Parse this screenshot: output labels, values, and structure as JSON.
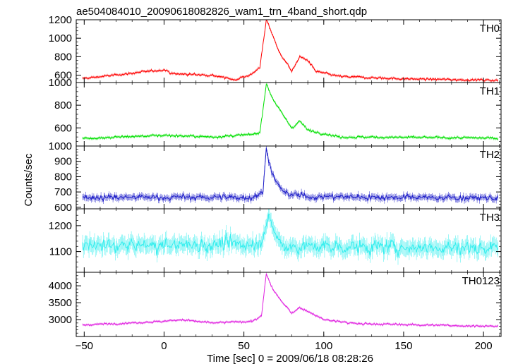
{
  "title": "ae504084010_20090618082826_wam1_trn_4band_short.qdp",
  "xlabel": "Time [sec] 0 = 2009/06/18 08:28:26",
  "ylabel": "Counts/sec",
  "chart_data": {
    "type": "line",
    "x_range": [
      -55,
      211
    ],
    "x_ticks": [
      -50,
      0,
      50,
      100,
      150,
      200
    ],
    "x_tick_labels": [
      "−50",
      "0",
      "50",
      "100",
      "150",
      "200"
    ],
    "grid": false,
    "panels": [
      {
        "name": "TH0",
        "color": "#ff0000",
        "ylim": [
          520,
          1200
        ],
        "y_ticks": [
          600,
          800,
          1000,
          1200
        ],
        "y_tick_labels": [
          "600",
          "800",
          "1000",
          "1200"
        ],
        "baseline": 555,
        "noise": 14,
        "features": [
          {
            "x": 0.4,
            "value": 660
          },
          {
            "x": 5,
            "value": 615
          },
          {
            "x": 30,
            "value": 600
          },
          {
            "x": 44,
            "value": 550
          },
          {
            "x": 55,
            "value": 610
          },
          {
            "x": 60,
            "value": 690
          },
          {
            "x": 63,
            "value": 1060
          },
          {
            "x": 64,
            "value": 1200
          },
          {
            "x": 67,
            "value": 1080
          },
          {
            "x": 72,
            "value": 850
          },
          {
            "x": 78,
            "value": 700
          },
          {
            "x": 80,
            "value": 640
          },
          {
            "x": 85,
            "value": 800
          },
          {
            "x": 90,
            "value": 760
          },
          {
            "x": 95,
            "value": 640
          },
          {
            "x": 110,
            "value": 585
          },
          {
            "x": 150,
            "value": 560
          },
          {
            "x": 209,
            "value": 545
          }
        ]
      },
      {
        "name": "TH1",
        "color": "#00e000",
        "ylim": [
          440,
          1000
        ],
        "y_ticks": [
          600,
          800,
          1000
        ],
        "y_tick_labels": [
          "600",
          "800",
          "1000"
        ],
        "baseline": 505,
        "noise": 12,
        "features": [
          {
            "x": 0.4,
            "value": 535
          },
          {
            "x": 10,
            "value": 530
          },
          {
            "x": 30,
            "value": 520
          },
          {
            "x": 55,
            "value": 540
          },
          {
            "x": 60,
            "value": 560
          },
          {
            "x": 63,
            "value": 880
          },
          {
            "x": 64,
            "value": 990
          },
          {
            "x": 68,
            "value": 860
          },
          {
            "x": 75,
            "value": 700
          },
          {
            "x": 80,
            "value": 600
          },
          {
            "x": 85,
            "value": 660
          },
          {
            "x": 90,
            "value": 580
          },
          {
            "x": 110,
            "value": 520
          },
          {
            "x": 209,
            "value": 510
          }
        ]
      },
      {
        "name": "TH2",
        "color": "#1c1cc8",
        "ylim": [
          590,
          1000
        ],
        "y_ticks": [
          600,
          700,
          800,
          900,
          1000
        ],
        "y_tick_labels": [
          "600",
          "700",
          "800",
          "900",
          "1000"
        ],
        "baseline": 665,
        "noise": 22,
        "features": [
          {
            "x": 55,
            "value": 665
          },
          {
            "x": 62,
            "value": 700
          },
          {
            "x": 64,
            "value": 1000
          },
          {
            "x": 66,
            "value": 880
          },
          {
            "x": 70,
            "value": 760
          },
          {
            "x": 76,
            "value": 690
          },
          {
            "x": 90,
            "value": 670
          },
          {
            "x": 209,
            "value": 660
          }
        ]
      },
      {
        "name": "TH3",
        "color": "#33eeee",
        "ylim": [
          1020,
          1265
        ],
        "y_ticks": [
          1100,
          1200
        ],
        "y_tick_labels": [
          "1100",
          "1200"
        ],
        "baseline": 1120,
        "noise": 32,
        "features": [
          {
            "x": 60,
            "value": 1130
          },
          {
            "x": 65,
            "value": 1230
          },
          {
            "x": 70,
            "value": 1160
          },
          {
            "x": 75,
            "value": 1120
          },
          {
            "x": 209,
            "value": 1115
          }
        ]
      },
      {
        "name": "TH0123",
        "color": "#e020e0",
        "ylim": [
          2500,
          4400
        ],
        "y_ticks": [
          3000,
          3500,
          4000
        ],
        "y_tick_labels": [
          "3000",
          "3500",
          "4000"
        ],
        "baseline": 2830,
        "noise": 35,
        "features": [
          {
            "x": 0,
            "value": 2950
          },
          {
            "x": 10,
            "value": 3000
          },
          {
            "x": 30,
            "value": 2900
          },
          {
            "x": 55,
            "value": 2950
          },
          {
            "x": 61,
            "value": 3100
          },
          {
            "x": 63,
            "value": 3950
          },
          {
            "x": 64,
            "value": 4350
          },
          {
            "x": 68,
            "value": 3900
          },
          {
            "x": 75,
            "value": 3450
          },
          {
            "x": 80,
            "value": 3200
          },
          {
            "x": 85,
            "value": 3350
          },
          {
            "x": 90,
            "value": 3250
          },
          {
            "x": 100,
            "value": 3000
          },
          {
            "x": 120,
            "value": 2880
          },
          {
            "x": 209,
            "value": 2800
          }
        ]
      }
    ]
  }
}
